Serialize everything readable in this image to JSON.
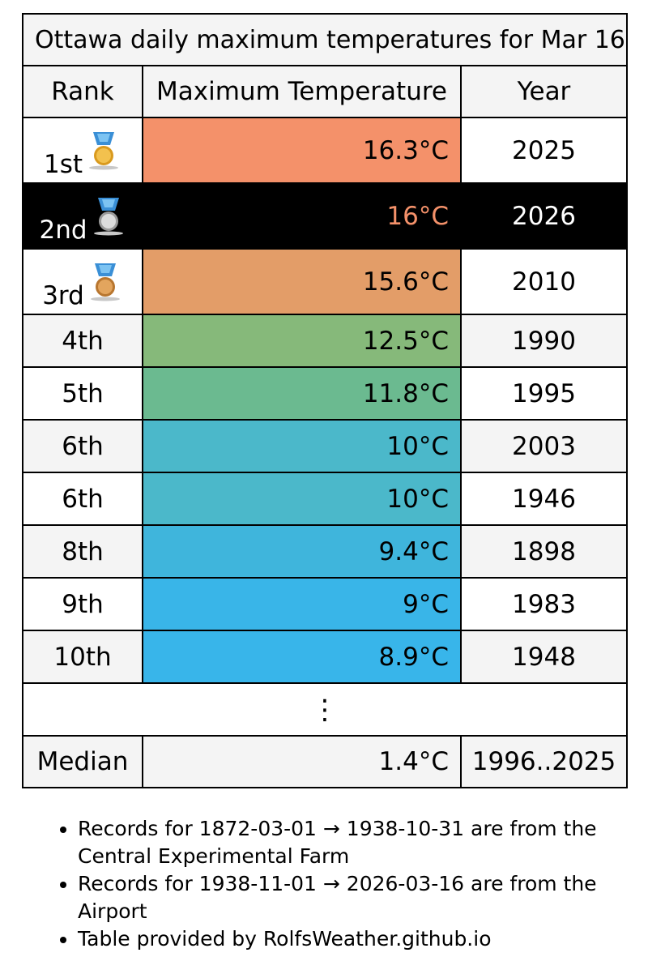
{
  "title": "Ottawa daily maximum temperatures for Mar 16",
  "columns": {
    "rank": "Rank",
    "temp": "Maximum Temperature",
    "year": "Year"
  },
  "colors": {
    "highlight_bg": "#000000",
    "highlight_temp_text": "#f4916a",
    "header_bg": "#f4f4f4"
  },
  "rows": [
    {
      "rank": "1st",
      "temp": "16.3°C",
      "year": "2025",
      "color": "#f4916a",
      "medal": "gold-medal-icon"
    },
    {
      "rank": "2nd",
      "temp": "16°C",
      "year": "2026",
      "color": "#f4916a",
      "medal": "silver-medal-icon",
      "highlight": true
    },
    {
      "rank": "3rd",
      "temp": "15.6°C",
      "year": "2010",
      "color": "#e39d68",
      "medal": "bronze-medal-icon"
    },
    {
      "rank": "4th",
      "temp": "12.5°C",
      "year": "1990",
      "color": "#86b97a"
    },
    {
      "rank": "5th",
      "temp": "11.8°C",
      "year": "1995",
      "color": "#6bba90"
    },
    {
      "rank": "6th",
      "temp": "10°C",
      "year": "2003",
      "color": "#4bb8ca"
    },
    {
      "rank": "6th",
      "temp": "10°C",
      "year": "1946",
      "color": "#4bb8ca"
    },
    {
      "rank": "8th",
      "temp": "9.4°C",
      "year": "1898",
      "color": "#3fb5dc"
    },
    {
      "rank": "9th",
      "temp": "9°C",
      "year": "1983",
      "color": "#39b5e8"
    },
    {
      "rank": "10th",
      "temp": "8.9°C",
      "year": "1948",
      "color": "#38b5ea"
    }
  ],
  "ellipsis": "⋮",
  "median": {
    "label": "Median",
    "temp": "1.4°C",
    "years": "1996..2025"
  },
  "notes": [
    "Records for 1872-03-01 → 1938-10-31 are from the Central Experimental Farm",
    "Records for 1938-11-01 → 2026-03-16 are from the Airport",
    "Table provided by RolfsWeather.github.io"
  ]
}
